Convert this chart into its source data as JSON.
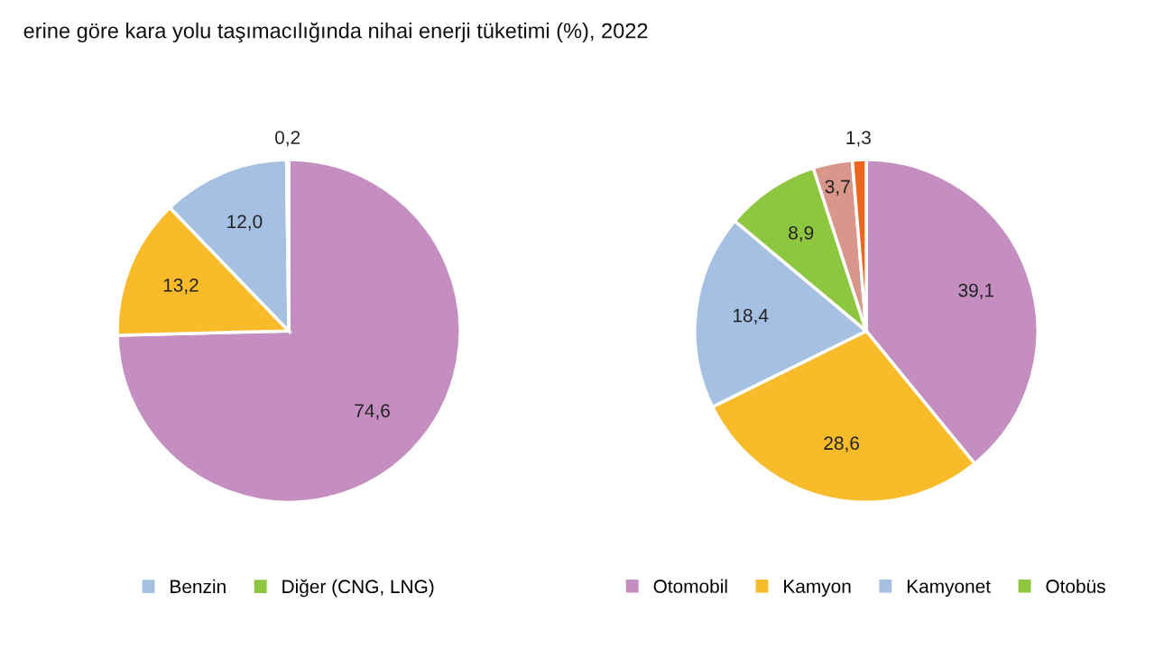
{
  "chart_data": [
    {
      "type": "pie",
      "title": "erine göre kara yolu taşımacılığında nihai enerji tüketimi (%), 2022",
      "categories": [
        null,
        null,
        "Benzin",
        "Diğer (CNG, LNG)"
      ],
      "values": [
        74.6,
        13.2,
        12.0,
        0.2
      ],
      "value_labels": [
        "74,6",
        "13,2",
        "12,0",
        "0,2"
      ],
      "colors": [
        "#c48fc0",
        "#f9bb2a",
        "#a6c0e4",
        "#8dc63f"
      ],
      "legend": "bottom"
    },
    {
      "type": "pie",
      "categories": [
        "Otomobil",
        "Kamyon",
        "Kamyonet",
        "Otobüs",
        null,
        null
      ],
      "values": [
        39.1,
        28.6,
        18.4,
        8.9,
        3.7,
        1.3
      ],
      "value_labels": [
        "39,1",
        "28,6",
        "18,4",
        "8,9",
        "3,7",
        "1,3"
      ],
      "colors": [
        "#c48fc0",
        "#f9bb2a",
        "#a6c0e4",
        "#8dc63f",
        "#d9968a",
        "#f0651e"
      ],
      "legend": "bottom"
    }
  ]
}
